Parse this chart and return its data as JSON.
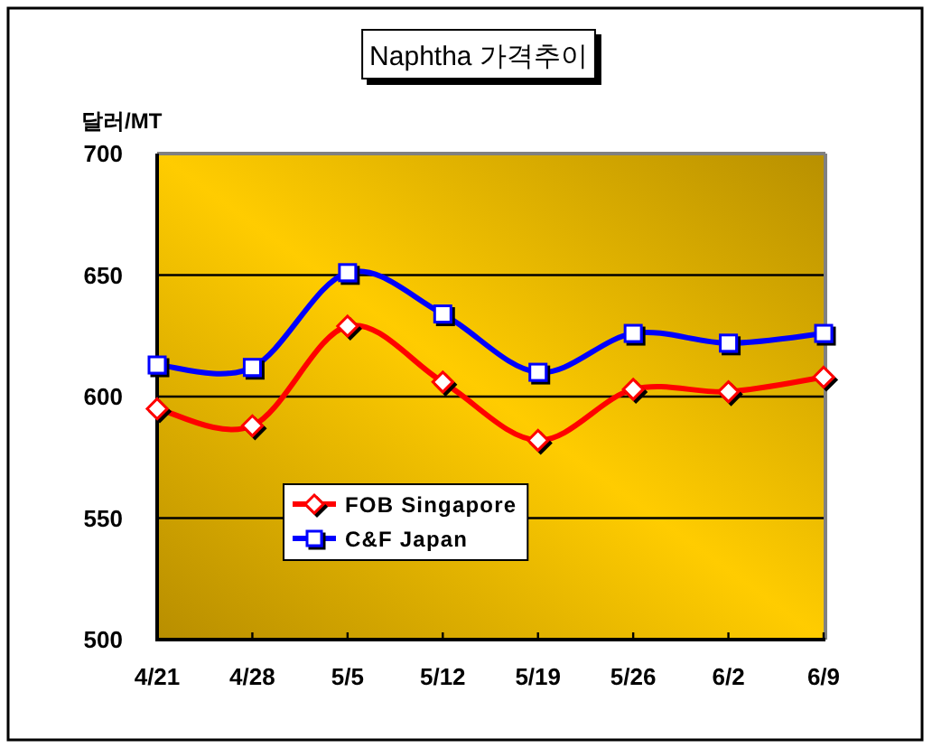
{
  "chart_data": {
    "type": "line",
    "title": "Naphtha 가격추이",
    "ylabel": "달러/MT",
    "categories": [
      "4/21",
      "4/28",
      "5/5",
      "5/12",
      "5/19",
      "5/26",
      "6/2",
      "6/9"
    ],
    "series": [
      {
        "name": "FOB Singapore",
        "color": "#ff0000",
        "marker": "diamond",
        "values": [
          595,
          588,
          629,
          606,
          582,
          603,
          602,
          608
        ]
      },
      {
        "name": "C&F Japan",
        "color": "#0000ff",
        "marker": "square",
        "values": [
          613,
          612,
          651,
          634,
          610,
          626,
          622,
          626
        ]
      }
    ],
    "ylim": [
      500,
      700
    ],
    "yticks": [
      500,
      550,
      600,
      650,
      700
    ],
    "grid": "y",
    "legend": "bottom left",
    "line_style": "solid"
  }
}
